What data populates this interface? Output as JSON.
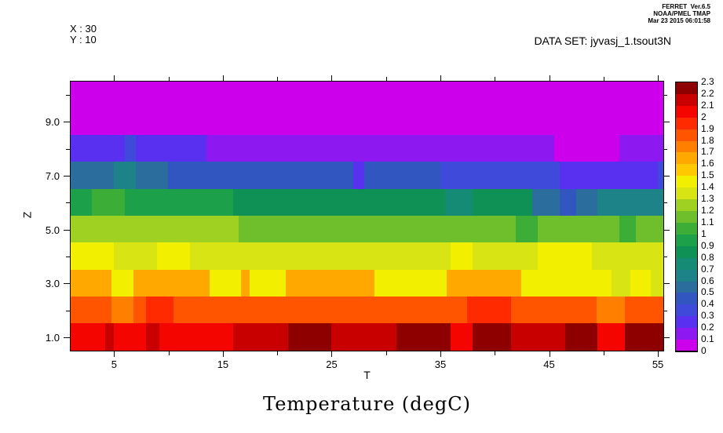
{
  "header": {
    "line1": "FERRET  Ver.6.5",
    "line2": "NOAA/PMEL TMAP",
    "line3": "Mar 23 2015 06:01:58"
  },
  "readouts": {
    "x": "X : 30",
    "y": "Y : 10"
  },
  "dataset_label": "DATA SET: jyvasj_1.tsout3N",
  "title": "Temperature (degC)",
  "chart_data": {
    "type": "heatmap",
    "title": "Temperature (degC)",
    "xlabel": "T",
    "ylabel": "Z",
    "x_range": [
      1,
      55.5
    ],
    "y_range": [
      0.5,
      10.5
    ],
    "x_ticks": [
      5,
      10,
      15,
      20,
      25,
      30,
      35,
      40,
      45,
      50,
      55
    ],
    "x_tick_labels": [
      "5",
      "15",
      "25",
      "35",
      "45",
      "55"
    ],
    "x_labeled_ticks": [
      5,
      15,
      25,
      35,
      45,
      55
    ],
    "y_ticks": [
      1,
      2,
      3,
      4,
      5,
      6,
      7,
      8,
      9,
      10
    ],
    "y_labeled_ticks": [
      1,
      3,
      5,
      7,
      9
    ],
    "y_tick_labels": [
      "1.0",
      "3.0",
      "5.0",
      "7.0",
      "9.0"
    ],
    "grid": false,
    "legend_position": "right-colorbar",
    "colorbar": {
      "min": 0,
      "max": 2.3,
      "step": 0.1,
      "labels": [
        "0",
        "0.1",
        "0.2",
        "0.3",
        "0.4",
        "0.5",
        "0.6",
        "0.7",
        "0.8",
        "0.9",
        "1",
        "1.1",
        "1.2",
        "1.3",
        "1.4",
        "1.5",
        "1.6",
        "1.7",
        "1.8",
        "1.9",
        "2",
        "2.1",
        "2.2",
        "2.3"
      ]
    },
    "palette": [
      "#CC00EB",
      "#8E19F0",
      "#5A30F0",
      "#3F49DA",
      "#3156C0",
      "#2B6E9E",
      "#1E8289",
      "#158A74",
      "#0F9156",
      "#1CA14A",
      "#3CAD36",
      "#6FBF2C",
      "#9FD122",
      "#D8E414",
      "#F2F000",
      "#FFC800",
      "#FFA800",
      "#FF7F00",
      "#FF5500",
      "#FF2A00",
      "#F50500",
      "#C80000",
      "#8E0000"
    ],
    "rows": [
      {
        "z": 10,
        "segments": [
          [
            1,
            55.5,
            0.05
          ]
        ]
      },
      {
        "z": 9,
        "segments": [
          [
            1,
            55.5,
            0.05
          ]
        ]
      },
      {
        "z": 8,
        "segments": [
          [
            1,
            6,
            0.25
          ],
          [
            6,
            7,
            0.35
          ],
          [
            7,
            13.5,
            0.25
          ],
          [
            13.5,
            45.5,
            0.15
          ],
          [
            45.5,
            51.5,
            0.05
          ],
          [
            51.5,
            55.5,
            0.15
          ]
        ]
      },
      {
        "z": 7,
        "segments": [
          [
            1,
            5,
            0.55
          ],
          [
            5,
            7,
            0.65
          ],
          [
            7,
            10,
            0.55
          ],
          [
            10,
            27,
            0.45
          ],
          [
            27,
            28,
            0.25
          ],
          [
            28,
            35,
            0.45
          ],
          [
            35,
            46,
            0.35
          ],
          [
            46,
            55,
            0.25
          ],
          [
            55,
            55.5,
            0.35
          ]
        ]
      },
      {
        "z": 6,
        "segments": [
          [
            1,
            3,
            0.95
          ],
          [
            3,
            6,
            1.05
          ],
          [
            6,
            16,
            0.95
          ],
          [
            16,
            35.5,
            0.85
          ],
          [
            35.5,
            38,
            0.75
          ],
          [
            38,
            43.5,
            0.85
          ],
          [
            43.5,
            46,
            0.55
          ],
          [
            46,
            47.5,
            0.45
          ],
          [
            47.5,
            49.5,
            0.55
          ],
          [
            49.5,
            55.5,
            0.65
          ]
        ]
      },
      {
        "z": 5,
        "segments": [
          [
            1,
            3,
            1.25
          ],
          [
            3,
            16.5,
            1.25
          ],
          [
            16.5,
            42,
            1.15
          ],
          [
            42,
            44,
            1.05
          ],
          [
            44,
            51.5,
            1.15
          ],
          [
            51.5,
            53,
            1.05
          ],
          [
            53,
            55.5,
            1.15
          ]
        ]
      },
      {
        "z": 4,
        "segments": [
          [
            1,
            5,
            1.45
          ],
          [
            5,
            9,
            1.35
          ],
          [
            9,
            12,
            1.45
          ],
          [
            12,
            36,
            1.35
          ],
          [
            36,
            38,
            1.45
          ],
          [
            38,
            44,
            1.35
          ],
          [
            44,
            49,
            1.45
          ],
          [
            49,
            55.5,
            1.35
          ]
        ]
      },
      {
        "z": 3,
        "segments": [
          [
            1,
            4.8,
            1.65
          ],
          [
            4.8,
            6.8,
            1.45
          ],
          [
            6.8,
            13.8,
            1.65
          ],
          [
            13.8,
            16.7,
            1.45
          ],
          [
            16.7,
            17.5,
            1.65
          ],
          [
            17.5,
            20.8,
            1.45
          ],
          [
            20.8,
            29,
            1.65
          ],
          [
            29,
            35.6,
            1.45
          ],
          [
            35.6,
            42.5,
            1.65
          ],
          [
            42.5,
            50.8,
            1.45
          ],
          [
            50.8,
            52.5,
            1.35
          ],
          [
            52.5,
            54.4,
            1.45
          ],
          [
            54.4,
            55.5,
            1.35
          ]
        ]
      },
      {
        "z": 2,
        "segments": [
          [
            1,
            4.8,
            1.85
          ],
          [
            4.8,
            6.8,
            1.75
          ],
          [
            6.8,
            8,
            1.85
          ],
          [
            8,
            10.5,
            1.95
          ],
          [
            10.5,
            37.5,
            1.85
          ],
          [
            37.5,
            41.5,
            1.95
          ],
          [
            41.5,
            49.4,
            1.85
          ],
          [
            49.4,
            52,
            1.75
          ],
          [
            52,
            55.5,
            1.85
          ]
        ]
      },
      {
        "z": 1,
        "segments": [
          [
            1,
            4.2,
            2.05
          ],
          [
            4.2,
            5,
            2.15
          ],
          [
            5,
            8,
            2.05
          ],
          [
            8,
            9.2,
            2.15
          ],
          [
            9.2,
            16,
            2.05
          ],
          [
            16,
            21,
            2.15
          ],
          [
            21,
            25,
            2.25
          ],
          [
            25,
            29,
            2.15
          ],
          [
            29,
            31,
            2.15
          ],
          [
            31,
            36,
            2.25
          ],
          [
            36,
            38,
            2.05
          ],
          [
            38,
            41.5,
            2.25
          ],
          [
            41.5,
            46.5,
            2.15
          ],
          [
            46.5,
            49.5,
            2.25
          ],
          [
            49.5,
            52,
            2.05
          ],
          [
            52,
            55.5,
            2.25
          ]
        ]
      }
    ]
  }
}
